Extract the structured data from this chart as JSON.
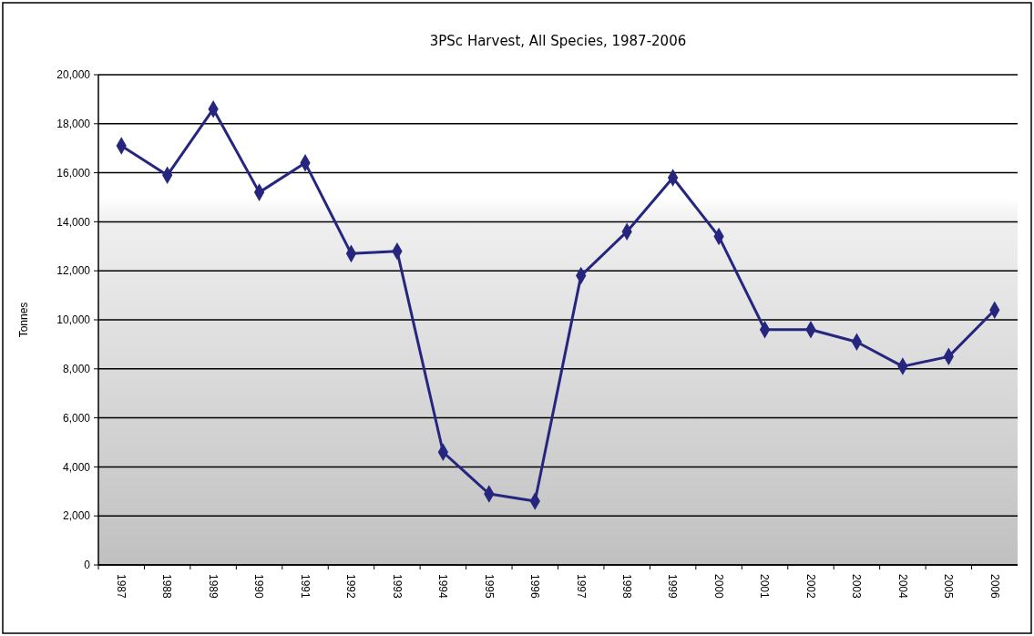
{
  "chart_data": {
    "type": "line",
    "title": "3PSc Harvest, All Species, 1987-2006",
    "ylabel": "Tonnes",
    "categories": [
      "1987",
      "1988",
      "1989",
      "1990",
      "1991",
      "1992",
      "1993",
      "1994",
      "1995",
      "1996",
      "1997",
      "1998",
      "1999",
      "2000",
      "2001",
      "2002",
      "2003",
      "2004",
      "2005",
      "2006"
    ],
    "series": [
      {
        "color": "#26267e",
        "values": [
          17100,
          15900,
          18600,
          15200,
          16400,
          12700,
          12800,
          4600,
          2900,
          2600,
          11800,
          13600,
          15800,
          13400,
          9600,
          9600,
          9100,
          8100,
          8500,
          10400
        ]
      }
    ],
    "ylim": [
      0,
      20000
    ],
    "yticks": [
      {
        "value": 0,
        "label": "0"
      },
      {
        "value": 2000,
        "label": "2,000"
      },
      {
        "value": 4000,
        "label": "4,000"
      },
      {
        "value": 6000,
        "label": "6,000"
      },
      {
        "value": 8000,
        "label": "8,000"
      },
      {
        "value": 10000,
        "label": "10,000"
      },
      {
        "value": 12000,
        "label": "12,000"
      },
      {
        "value": 14000,
        "label": "14,000"
      },
      {
        "value": 16000,
        "label": "16,000"
      },
      {
        "value": 18000,
        "label": "18,000"
      },
      {
        "value": 20000,
        "label": "20,000"
      }
    ],
    "grid": "y",
    "marker": "diamond",
    "line_style": "solid"
  }
}
